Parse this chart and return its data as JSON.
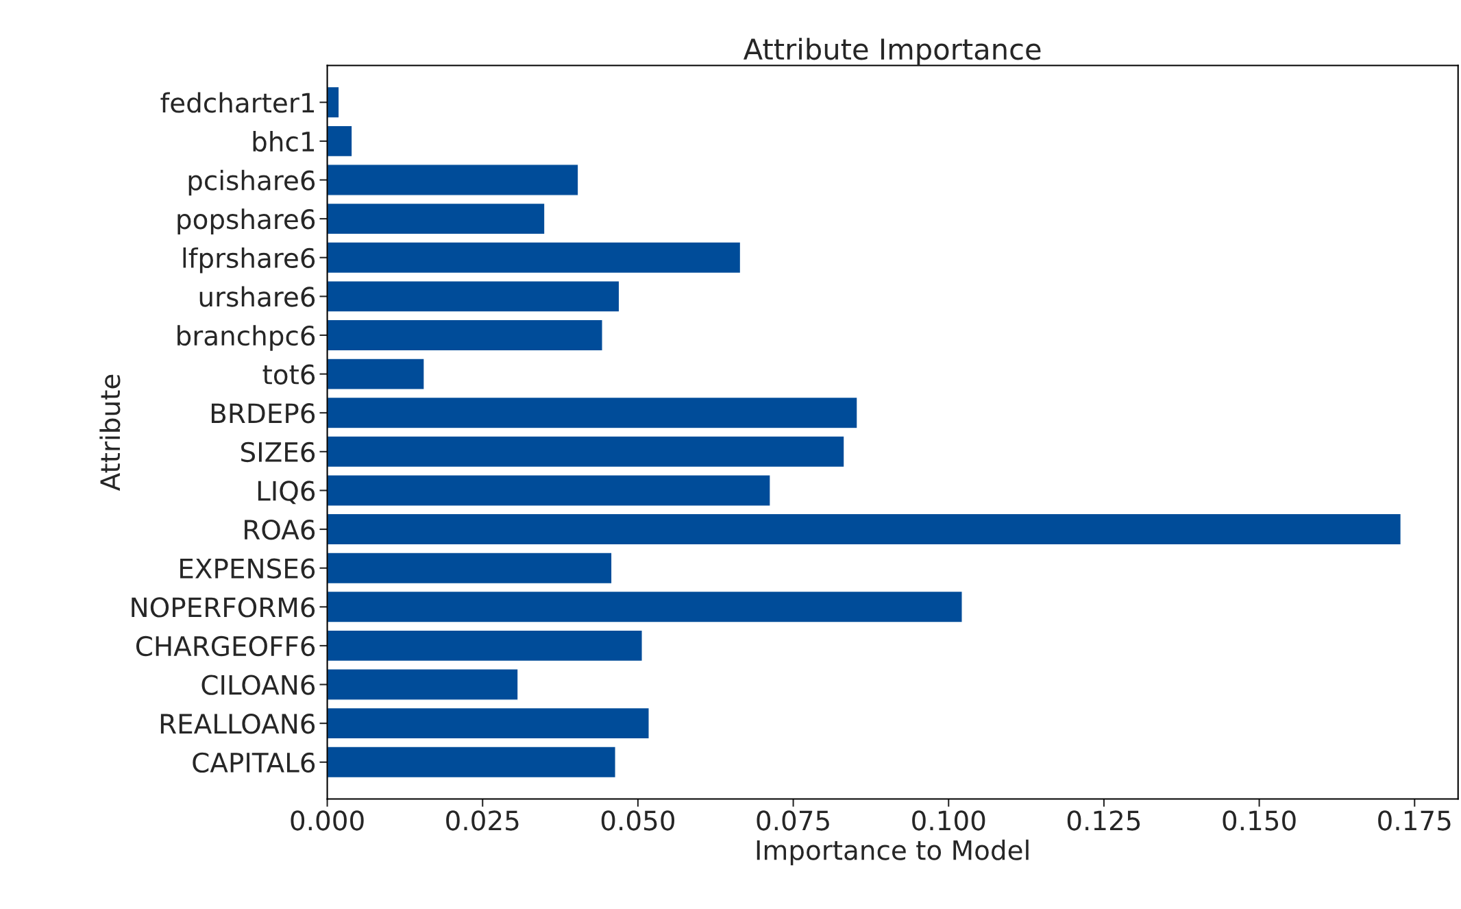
{
  "chart_data": {
    "type": "bar",
    "orientation": "horizontal",
    "title": "Attribute Importance",
    "xlabel": "Importance to Model",
    "ylabel": "Attribute",
    "categories": [
      "fedcharter1",
      "bhc1",
      "pcishare6",
      "popshare6",
      "lfprshare6",
      "urshare6",
      "branchpc6",
      "tot6",
      "BRDEP6",
      "SIZE6",
      "LIQ6",
      "ROA6",
      "EXPENSE6",
      "NOPERFORM6",
      "CHARGEOFF6",
      "CILOAN6",
      "REALLOAN6",
      "CAPITAL6"
    ],
    "values": [
      0.0019,
      0.004,
      0.0404,
      0.035,
      0.0665,
      0.047,
      0.0443,
      0.0156,
      0.0853,
      0.0832,
      0.0713,
      0.1728,
      0.0458,
      0.1022,
      0.0507,
      0.0307,
      0.0518,
      0.0464
    ],
    "color": "#004c99",
    "xlim": [
      0,
      0.182
    ],
    "xticks": [
      {
        "value": 0,
        "label": "0.000"
      },
      {
        "value": 0.025,
        "label": "0.025"
      },
      {
        "value": 0.05,
        "label": "0.050"
      },
      {
        "value": 0.075,
        "label": "0.075"
      },
      {
        "value": 0.1,
        "label": "0.100"
      },
      {
        "value": 0.125,
        "label": "0.125"
      },
      {
        "value": 0.15,
        "label": "0.150"
      },
      {
        "value": 0.175,
        "label": "0.175"
      }
    ],
    "grid": false,
    "legend": false
  }
}
